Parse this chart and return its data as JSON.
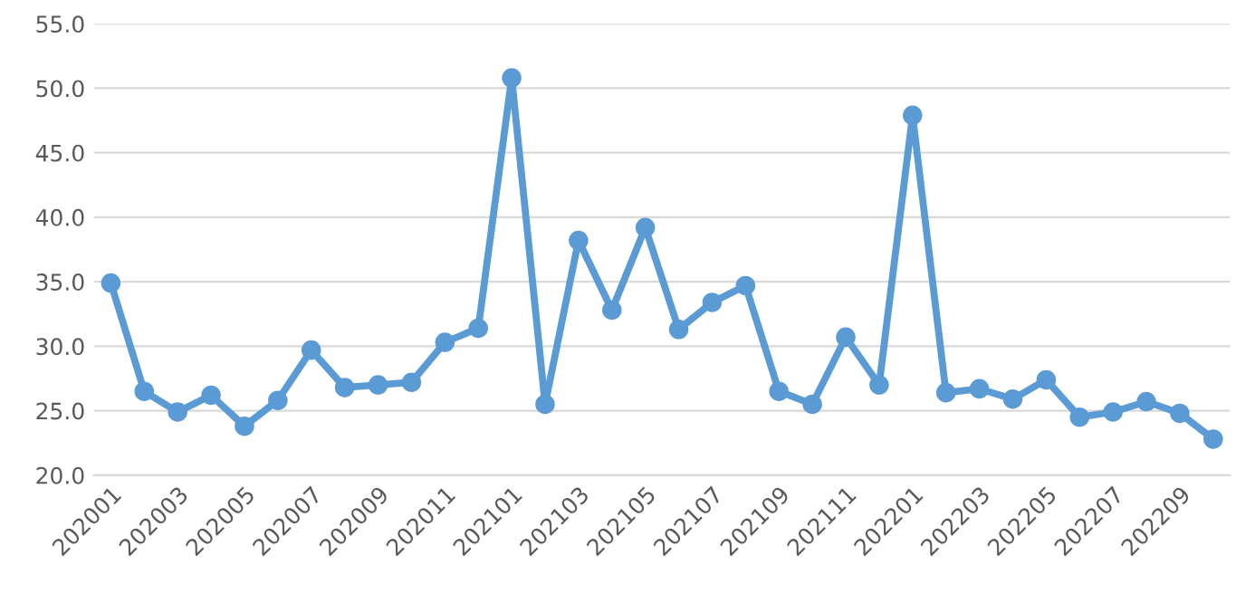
{
  "chart_data": {
    "type": "line",
    "categories": [
      "202001",
      null,
      "202003",
      null,
      "202005",
      null,
      "202007",
      null,
      "202009",
      null,
      "202011",
      null,
      "202101",
      null,
      "202103",
      null,
      "202105",
      null,
      "202107",
      null,
      "202109",
      null,
      "202111",
      null,
      "202201",
      null,
      "202203",
      null,
      "202205",
      null,
      "202207",
      null,
      "202209",
      null
    ],
    "series": [
      {
        "color": "#5b9bd5",
        "values": [
          34.9,
          26.5,
          24.9,
          26.2,
          23.8,
          25.8,
          29.7,
          26.8,
          27.0,
          27.2,
          30.3,
          31.4,
          50.8,
          25.5,
          38.2,
          32.8,
          39.2,
          31.3,
          33.4,
          34.7,
          26.5,
          25.5,
          30.7,
          27.0,
          47.9,
          26.4,
          26.7,
          25.9,
          27.4,
          24.5,
          24.9,
          25.7,
          24.8,
          22.8
        ]
      }
    ],
    "ylim": [
      20,
      55
    ],
    "yticks": [
      {
        "value": 20,
        "label": "20.0"
      },
      {
        "value": 25,
        "label": "25.0"
      },
      {
        "value": 30,
        "label": "30.0"
      },
      {
        "value": 35,
        "label": "35.0"
      },
      {
        "value": 40,
        "label": "40.0"
      },
      {
        "value": 45,
        "label": "45.0"
      },
      {
        "value": 50,
        "label": "50.0"
      },
      {
        "value": 55,
        "label": "55.0"
      }
    ],
    "grid": "y",
    "marker": "circle",
    "line_style": "solid",
    "legend": false
  }
}
